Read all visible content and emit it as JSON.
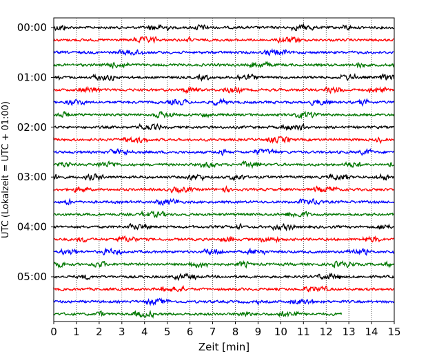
{
  "chart_data": {
    "type": "line",
    "title": "",
    "xlabel": "Zeit  [min]",
    "ylabel": "UTC (Lokalzeit = UTC + 01:00)",
    "xlim": [
      0,
      15
    ],
    "x_ticks": [
      "0",
      "1",
      "2",
      "3",
      "4",
      "5",
      "6",
      "7",
      "8",
      "9",
      "10",
      "11",
      "12",
      "13",
      "14",
      "15"
    ],
    "y_ticks": [
      "00:00",
      "01:00",
      "02:00",
      "03:00",
      "04:00",
      "05:00"
    ],
    "grid": "vertical-dotted",
    "trace_colors": [
      "#000000",
      "#ff0000",
      "#0000ff",
      "#007700"
    ],
    "trace_interval_min": 15,
    "trace_count": 24,
    "last_trace_end_min": 12.7
  }
}
